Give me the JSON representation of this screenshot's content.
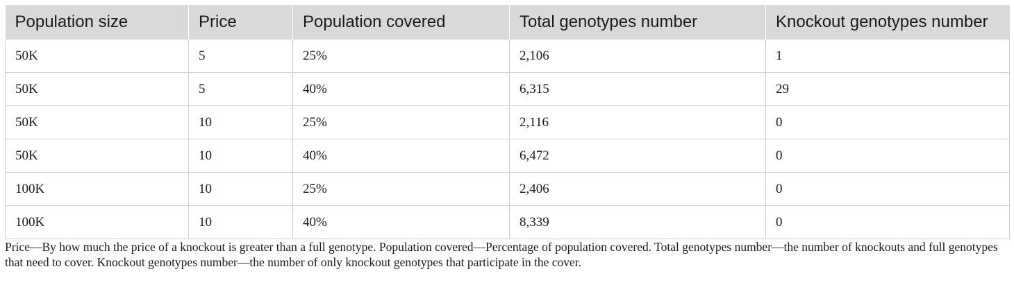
{
  "table": {
    "headers": [
      "Population size",
      "Price",
      "Population covered",
      "Total genotypes number",
      "Knockout genotypes number"
    ],
    "rows": [
      [
        "50K",
        "5",
        "25%",
        "2,106",
        "1"
      ],
      [
        "50K",
        "5",
        "40%",
        "6,315",
        "29"
      ],
      [
        "50K",
        "10",
        "25%",
        "2,116",
        "0"
      ],
      [
        "50K",
        "10",
        "40%",
        "6,472",
        "0"
      ],
      [
        "100K",
        "10",
        "25%",
        "2,406",
        "0"
      ],
      [
        "100K",
        "10",
        "40%",
        "8,339",
        "0"
      ]
    ],
    "header_bg_color": "#d9d9d9"
  },
  "footnote": "Price—By how much the price of a knockout is greater than a full genotype. Population covered—Percentage of population covered. Total genotypes number—the number of knockouts and full genotypes that need to cover. Knockout genotypes number—the number of only knockout genotypes that participate in the cover."
}
